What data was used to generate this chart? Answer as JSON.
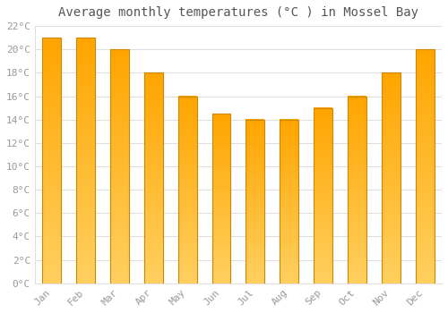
{
  "title": "Average monthly temperatures (°C ) in Mossel Bay",
  "months": [
    "Jan",
    "Feb",
    "Mar",
    "Apr",
    "May",
    "Jun",
    "Jul",
    "Aug",
    "Sep",
    "Oct",
    "Nov",
    "Dec"
  ],
  "values": [
    21,
    21,
    20,
    18,
    16,
    14.5,
    14,
    14,
    15,
    16,
    18,
    20
  ],
  "bar_color_top": "#FFA500",
  "bar_color_bottom": "#FFD060",
  "bar_edge_color": "#CC8800",
  "ylim": [
    0,
    22
  ],
  "yticks": [
    0,
    2,
    4,
    6,
    8,
    10,
    12,
    14,
    16,
    18,
    20,
    22
  ],
  "background_color": "#FFFFFF",
  "grid_color": "#DDDDDD",
  "title_fontsize": 10,
  "tick_fontsize": 8,
  "tick_color": "#999999",
  "font_family": "monospace",
  "bar_width": 0.55
}
